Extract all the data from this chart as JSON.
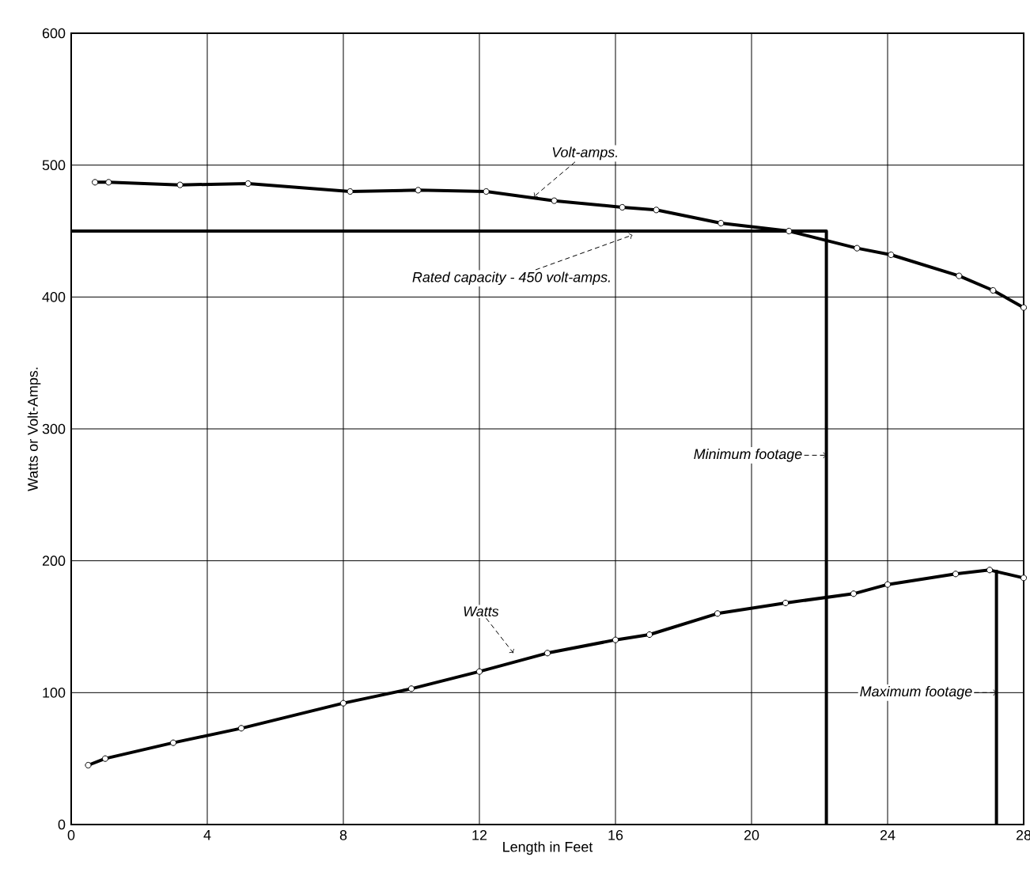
{
  "chart_data": {
    "type": "line",
    "xlabel": "Length in Feet",
    "ylabel": "Watts or Volt-Amps.",
    "xlim": [
      0,
      28
    ],
    "xticks": [
      0,
      4,
      8,
      12,
      16,
      20,
      24,
      28
    ],
    "ylim": [
      0,
      600
    ],
    "yticks": [
      0,
      100,
      200,
      300,
      400,
      500,
      600
    ],
    "grid": true,
    "marker": "circle",
    "line_style": "solid",
    "series": [
      {
        "color": "#000000",
        "x": [
          0.7,
          1.1,
          3.2,
          5.2,
          8.2,
          10.2,
          12.2,
          14.2,
          16.2,
          17.2,
          19.1,
          21.1,
          23.1,
          24.1,
          26.1,
          27.1,
          28
        ],
        "values": [
          487,
          487,
          485,
          486,
          480,
          481,
          480,
          473,
          468,
          466,
          456,
          450,
          437,
          432,
          416,
          405,
          392
        ]
      },
      {
        "color": "#000000",
        "x": [
          0.5,
          1,
          3,
          5,
          8,
          10,
          12,
          14,
          16,
          17,
          19,
          21,
          23,
          24,
          26,
          27,
          28
        ],
        "values": [
          45,
          50,
          62,
          73,
          92,
          103,
          116,
          130,
          140,
          144,
          160,
          168,
          175,
          182,
          190,
          193,
          187
        ]
      },
      {
        "color": "#000000",
        "marker": "none",
        "x": [
          0,
          22.2,
          22.2
        ],
        "values": [
          450,
          450,
          0
        ]
      },
      {
        "color": "#000000",
        "marker": "none",
        "x": [
          27.2,
          27.2
        ],
        "values": [
          193,
          0
        ]
      }
    ],
    "annotations": [
      {
        "text": "Volt-amps.",
        "x": 13.6,
        "y": 476
      },
      {
        "text": "Rated capacity - 450 volt-amps.",
        "x": 16.5,
        "y": 447
      },
      {
        "text": "Minimum footage",
        "x": 22.2,
        "y": 280
      },
      {
        "text": "Watts",
        "x": 13,
        "y": 130
      },
      {
        "text": "Maximum footage",
        "x": 27.2,
        "y": 100
      }
    ]
  }
}
